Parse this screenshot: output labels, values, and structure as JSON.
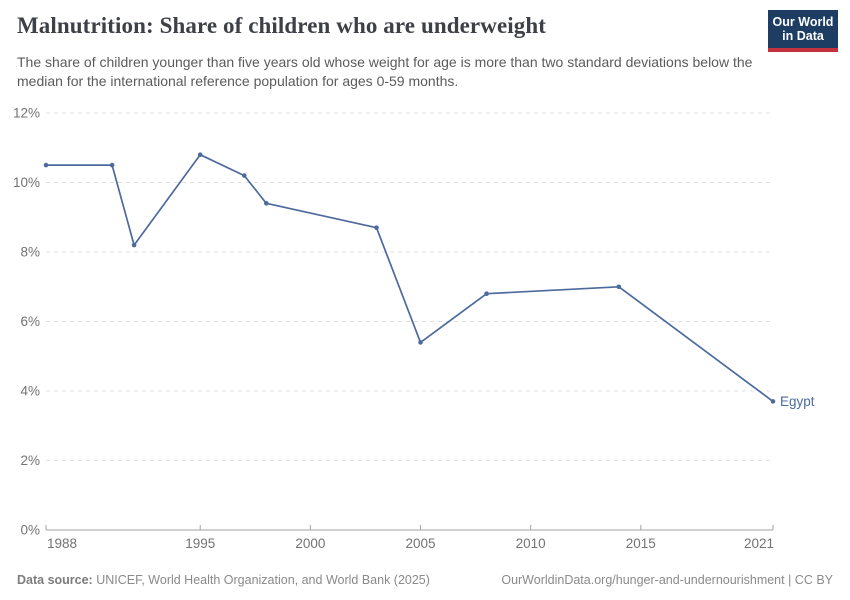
{
  "header": {
    "title": "Malnutrition: Share of children who are underweight",
    "subtitle": "The share of children younger than five years old whose weight for age is more than two standard deviations below the median for the international reference population for ages 0-59 months.",
    "logo": {
      "line1": "Our World",
      "line2": "in Data",
      "bg_color": "#1d3d63",
      "stripe_color": "#c4333d"
    }
  },
  "chart_data": {
    "type": "line",
    "title": "Malnutrition: Share of children who are underweight",
    "series": [
      {
        "name": "Egypt",
        "color": "#4C6A9C",
        "points": [
          [
            1988,
            10.5
          ],
          [
            1991,
            10.5
          ],
          [
            1992,
            8.2
          ],
          [
            1995,
            10.8
          ],
          [
            1997,
            10.2
          ],
          [
            1998,
            9.4
          ],
          [
            2003,
            8.7
          ],
          [
            2005,
            5.4
          ],
          [
            2008,
            6.8
          ],
          [
            2014,
            7.0
          ],
          [
            2021,
            3.7
          ]
        ]
      }
    ],
    "xlim": [
      1988,
      2021
    ],
    "ylim": [
      0,
      12
    ],
    "x_ticks": [
      1988,
      1995,
      2000,
      2005,
      2010,
      2015,
      2021
    ],
    "y_ticks": [
      0,
      2,
      4,
      6,
      8,
      10,
      12
    ],
    "y_suffix": "%",
    "grid": "horizontal-dashed",
    "legend_position": "end-of-line-label",
    "end_label": "Egypt",
    "axis_color": "#a3a3a3",
    "grid_color": "#e0e0e0",
    "tick_label_color": "#737373"
  },
  "footer": {
    "datasource_label": "Data source:",
    "datasource_text": " UNICEF, World Health Organization, and World Bank (2025)",
    "link_text": "OurWorldinData.org/hunger-and-undernourishment | CC BY"
  }
}
